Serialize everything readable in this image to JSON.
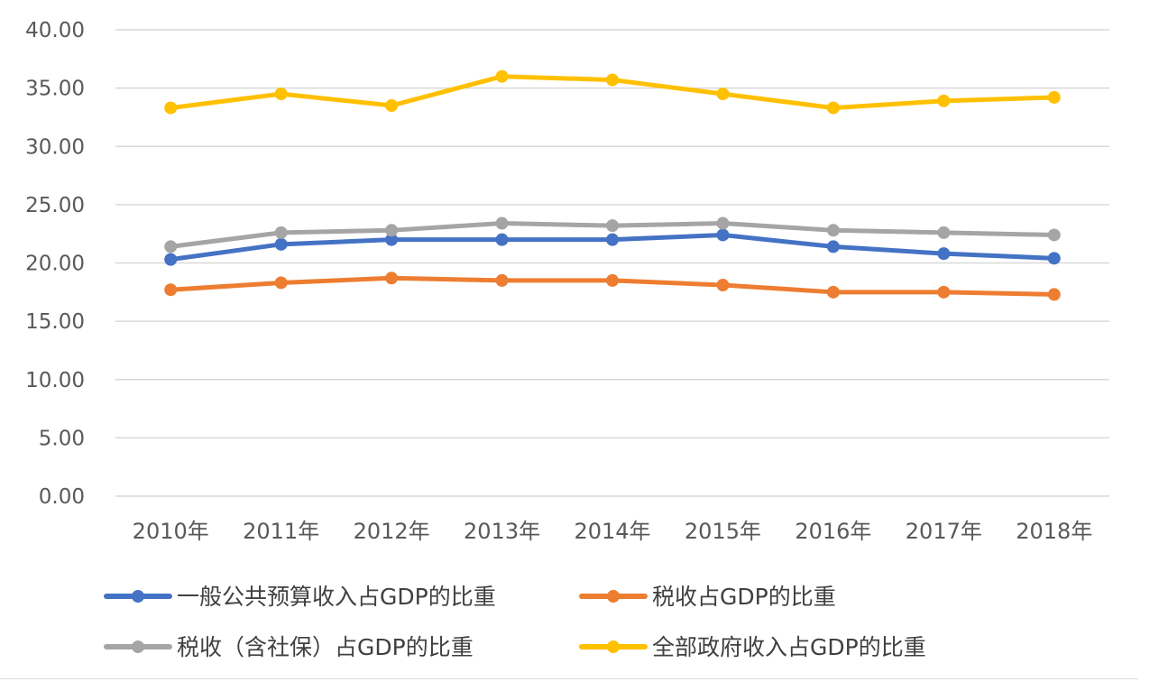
{
  "chart_data": {
    "type": "line",
    "title": "",
    "xlabel": "",
    "ylabel": "",
    "ylim": [
      0,
      40
    ],
    "y_ticks": [
      "0.00",
      "5.00",
      "10.00",
      "15.00",
      "20.00",
      "25.00",
      "30.00",
      "35.00",
      "40.00"
    ],
    "categories": [
      "2010年",
      "2011年",
      "2012年",
      "2013年",
      "2014年",
      "2015年",
      "2016年",
      "2017年",
      "2018年"
    ],
    "grid": "horizontal",
    "legend_position": "bottom",
    "series": [
      {
        "name": "一般公共预算收入占GDP的比重",
        "color": "#4472c4",
        "values": [
          20.3,
          21.6,
          22.0,
          22.0,
          22.0,
          22.4,
          21.4,
          20.8,
          20.4
        ]
      },
      {
        "name": "税收占GDP的比重",
        "color": "#ed7d31",
        "values": [
          17.7,
          18.3,
          18.7,
          18.5,
          18.5,
          18.1,
          17.5,
          17.5,
          17.3
        ]
      },
      {
        "name": "税收（含社保）占GDP的比重",
        "color": "#a5a5a5",
        "values": [
          21.4,
          22.6,
          22.8,
          23.4,
          23.2,
          23.4,
          22.8,
          22.6,
          22.4
        ]
      },
      {
        "name": "全部政府收入占GDP的比重",
        "color": "#ffc000",
        "values": [
          33.3,
          34.5,
          33.5,
          36.0,
          35.7,
          34.5,
          33.3,
          33.9,
          34.2
        ]
      }
    ]
  }
}
